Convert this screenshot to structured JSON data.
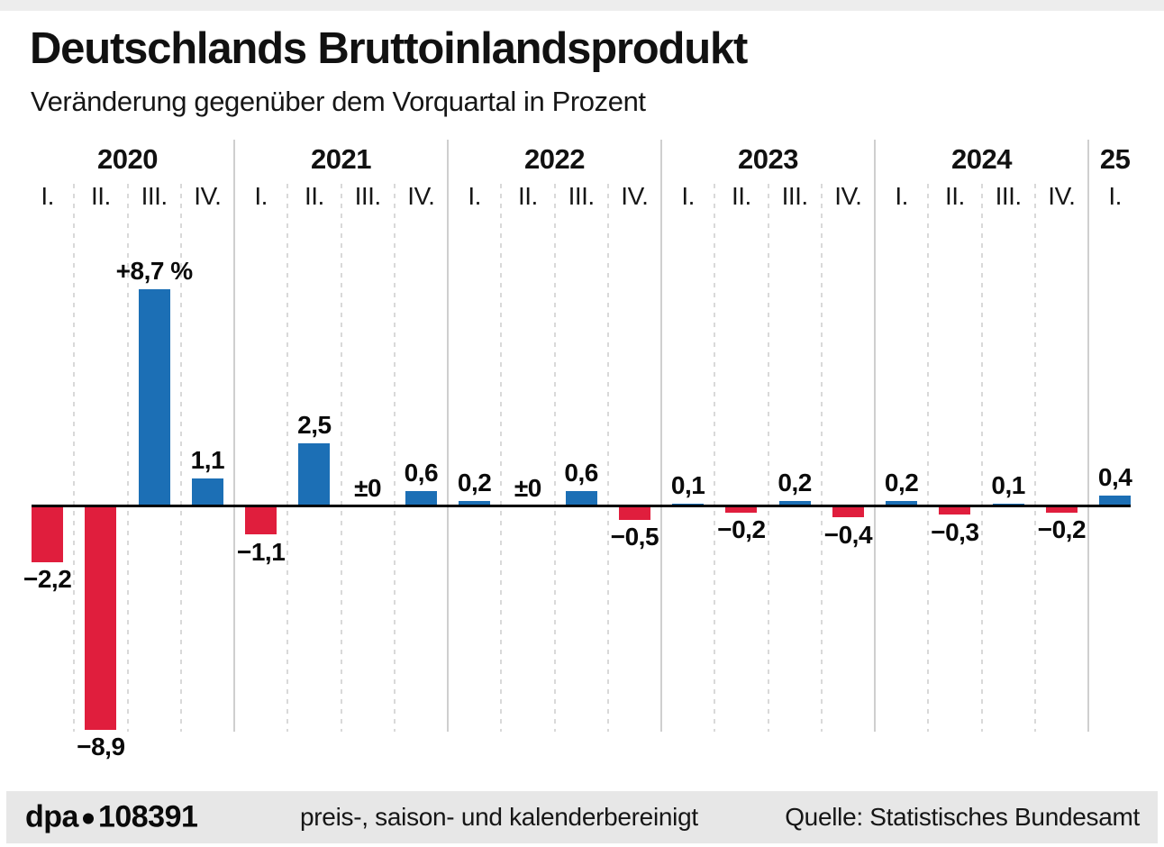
{
  "header": {
    "title": "Deutschlands Bruttoinlandsprodukt",
    "subtitle": "Veränderung gegenüber dem Vorquartal in Prozent"
  },
  "footer": {
    "brand": "dpa",
    "graphic_id": "108391",
    "note": "preis-, saison- und kalenderbereinigt",
    "source": "Quelle: Statistisches Bundesamt"
  },
  "colors": {
    "positive_bar": "#1c6fb5",
    "negative_bar": "#e01e3d",
    "axis": "#000000",
    "solid_gridline": "#cfcfcf",
    "dashed_gridline": "#d9d9d9",
    "footer_band": "#e7e7e7"
  },
  "chart_data": {
    "type": "bar",
    "title": "Deutschlands Bruttoinlandsprodukt",
    "ylabel": "Veränderung gegenüber dem Vorquartal in Prozent",
    "unit": "Prozent",
    "legend": "none",
    "grid": "vertical dashed per quarter, solid per year",
    "ylim": [
      -8.9,
      8.7
    ],
    "groups": [
      {
        "year": "2020",
        "quarters": [
          {
            "label": "I.",
            "value": -2.2,
            "display": "−2,2"
          },
          {
            "label": "II.",
            "value": -8.9,
            "display": "−8,9"
          },
          {
            "label": "III.",
            "value": 8.7,
            "display": "+8,7 %"
          },
          {
            "label": "IV.",
            "value": 1.1,
            "display": "1,1"
          }
        ]
      },
      {
        "year": "2021",
        "quarters": [
          {
            "label": "I.",
            "value": -1.1,
            "display": "−1,1"
          },
          {
            "label": "II.",
            "value": 2.5,
            "display": "2,5"
          },
          {
            "label": "III.",
            "value": 0,
            "display": "±0"
          },
          {
            "label": "IV.",
            "value": 0.6,
            "display": "0,6"
          }
        ]
      },
      {
        "year": "2022",
        "quarters": [
          {
            "label": "I.",
            "value": 0.2,
            "display": "0,2"
          },
          {
            "label": "II.",
            "value": 0,
            "display": "±0"
          },
          {
            "label": "III.",
            "value": 0.6,
            "display": "0,6"
          },
          {
            "label": "IV.",
            "value": -0.5,
            "display": "−0,5"
          }
        ]
      },
      {
        "year": "2023",
        "quarters": [
          {
            "label": "I.",
            "value": 0.1,
            "display": "0,1"
          },
          {
            "label": "II.",
            "value": -0.2,
            "display": "−0,2"
          },
          {
            "label": "III.",
            "value": 0.2,
            "display": "0,2"
          },
          {
            "label": "IV.",
            "value": -0.4,
            "display": "−0,4"
          }
        ]
      },
      {
        "year": "2024",
        "quarters": [
          {
            "label": "I.",
            "value": 0.2,
            "display": "0,2"
          },
          {
            "label": "II.",
            "value": -0.3,
            "display": "−0,3"
          },
          {
            "label": "III.",
            "value": 0.1,
            "display": "0,1"
          },
          {
            "label": "IV.",
            "value": -0.2,
            "display": "−0,2"
          }
        ]
      },
      {
        "year": "25",
        "quarters": [
          {
            "label": "I.",
            "value": 0.4,
            "display": "0,4"
          }
        ]
      }
    ]
  }
}
